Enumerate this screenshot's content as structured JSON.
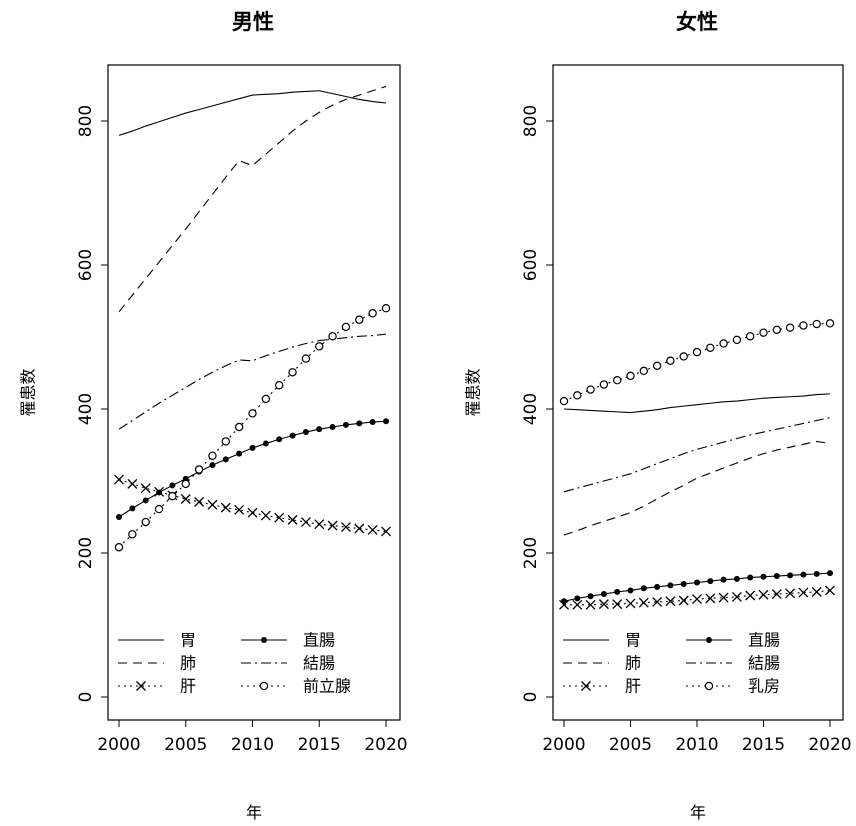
{
  "chart_data": [
    {
      "type": "line",
      "title": "男性",
      "xlabel": "年",
      "ylabel": "罹患数",
      "xlim": [
        2000,
        2020
      ],
      "ylim": [
        0,
        800
      ],
      "xticks": [
        2000,
        2005,
        2010,
        2015,
        2020
      ],
      "yticks": [
        0,
        200,
        400,
        600,
        800
      ],
      "grid": false,
      "legend_position": "bottom",
      "x": [
        2000,
        2001,
        2002,
        2003,
        2004,
        2005,
        2006,
        2007,
        2008,
        2009,
        2010,
        2011,
        2012,
        2013,
        2014,
        2015,
        2016,
        2017,
        2018,
        2019,
        2020
      ],
      "series": [
        {
          "name": "胃",
          "line": "solid",
          "marker": "none",
          "values": [
            780,
            786,
            793,
            799,
            805,
            811,
            816,
            821,
            826,
            831,
            836,
            837,
            838,
            840,
            841,
            842,
            838,
            834,
            830,
            827,
            825
          ]
        },
        {
          "name": "肺",
          "line": "dashed",
          "marker": "none",
          "values": [
            535,
            558,
            581,
            604,
            627,
            650,
            674,
            698,
            722,
            745,
            738,
            754,
            770,
            786,
            800,
            812,
            822,
            830,
            836,
            842,
            848
          ]
        },
        {
          "name": "肝",
          "line": "dotted",
          "marker": "x",
          "values": [
            302,
            296,
            290,
            285,
            280,
            275,
            271,
            267,
            263,
            260,
            256,
            252,
            249,
            246,
            243,
            240,
            238,
            236,
            234,
            232,
            230
          ]
        },
        {
          "name": "直腸",
          "line": "solid",
          "marker": "filled-circle",
          "values": [
            250,
            262,
            273,
            284,
            294,
            303,
            313,
            322,
            330,
            338,
            346,
            352,
            358,
            363,
            368,
            372,
            375,
            378,
            380,
            382,
            383
          ]
        },
        {
          "name": "結腸",
          "line": "dashdot",
          "marker": "none",
          "values": [
            372,
            384,
            396,
            408,
            419,
            430,
            441,
            451,
            460,
            468,
            467,
            474,
            480,
            486,
            491,
            495,
            497,
            499,
            501,
            502,
            504
          ]
        },
        {
          "name": "前立腺",
          "line": "dotted",
          "marker": "open-circle",
          "values": [
            208,
            226,
            243,
            261,
            279,
            296,
            316,
            335,
            355,
            375,
            394,
            414,
            433,
            451,
            470,
            487,
            501,
            514,
            524,
            533,
            540
          ]
        }
      ],
      "legend": [
        {
          "label": "胃",
          "series": 0
        },
        {
          "label": "肺",
          "series": 1
        },
        {
          "label": "肝",
          "series": 2
        },
        {
          "label": "直腸",
          "series": 3
        },
        {
          "label": "結腸",
          "series": 4
        },
        {
          "label": "前立腺",
          "series": 5
        }
      ]
    },
    {
      "type": "line",
      "title": "女性",
      "xlabel": "年",
      "ylabel": "罹患数",
      "xlim": [
        2000,
        2020
      ],
      "ylim": [
        0,
        800
      ],
      "xticks": [
        2000,
        2005,
        2010,
        2015,
        2020
      ],
      "yticks": [
        0,
        200,
        400,
        600,
        800
      ],
      "grid": false,
      "legend_position": "bottom",
      "x": [
        2000,
        2001,
        2002,
        2003,
        2004,
        2005,
        2006,
        2007,
        2008,
        2009,
        2010,
        2011,
        2012,
        2013,
        2014,
        2015,
        2016,
        2017,
        2018,
        2019,
        2020
      ],
      "series": [
        {
          "name": "胃",
          "line": "solid",
          "marker": "none",
          "values": [
            400,
            399,
            398,
            397,
            396,
            395,
            397,
            399,
            402,
            404,
            406,
            408,
            410,
            411,
            413,
            415,
            416,
            417,
            418,
            420,
            421
          ]
        },
        {
          "name": "肺",
          "line": "dashed",
          "marker": "none",
          "values": [
            225,
            231,
            238,
            244,
            250,
            256,
            265,
            275,
            285,
            294,
            304,
            311,
            318,
            325,
            332,
            338,
            343,
            347,
            351,
            355,
            352
          ]
        },
        {
          "name": "肝",
          "line": "dotted",
          "marker": "x",
          "values": [
            128,
            128,
            128,
            129,
            129,
            130,
            131,
            132,
            133,
            134,
            136,
            137,
            138,
            139,
            141,
            142,
            143,
            144,
            145,
            146,
            148
          ]
        },
        {
          "name": "直腸",
          "line": "solid",
          "marker": "filled-circle",
          "values": [
            133,
            137,
            140,
            143,
            146,
            148,
            151,
            153,
            155,
            157,
            159,
            161,
            163,
            164,
            166,
            167,
            168,
            169,
            170,
            171,
            172
          ]
        },
        {
          "name": "結腸",
          "line": "dashdot",
          "marker": "none",
          "values": [
            285,
            290,
            295,
            300,
            305,
            310,
            317,
            324,
            331,
            338,
            344,
            349,
            354,
            359,
            364,
            368,
            372,
            376,
            380,
            384,
            388
          ]
        },
        {
          "name": "乳房",
          "line": "dotted",
          "marker": "open-circle",
          "values": [
            411,
            419,
            427,
            434,
            440,
            446,
            453,
            460,
            467,
            473,
            479,
            485,
            491,
            496,
            501,
            506,
            510,
            513,
            516,
            518,
            519
          ]
        }
      ],
      "legend": [
        {
          "label": "胃",
          "series": 0
        },
        {
          "label": "肺",
          "series": 1
        },
        {
          "label": "肝",
          "series": 2
        },
        {
          "label": "直腸",
          "series": 3
        },
        {
          "label": "結腸",
          "series": 4
        },
        {
          "label": "乳房",
          "series": 5
        }
      ]
    }
  ]
}
